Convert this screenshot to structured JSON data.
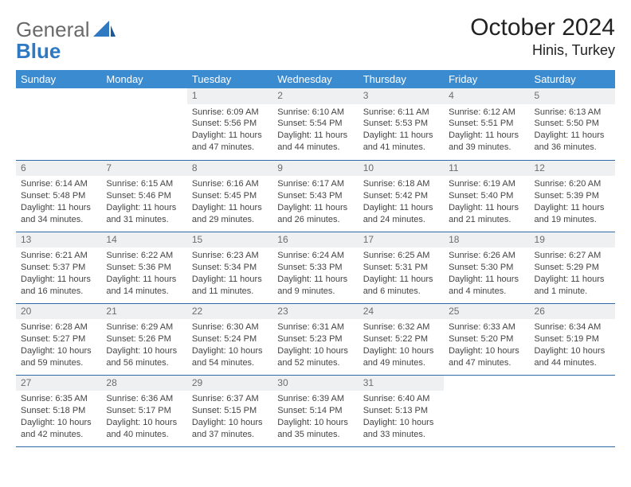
{
  "brand": {
    "general": "General",
    "blue": "Blue"
  },
  "title": "October 2024",
  "location": "Hinis, Turkey",
  "header_bg": "#3b8bd1",
  "daybar_bg": "#eef0f2",
  "rule_color": "#2e6aa7",
  "day_names": [
    "Sunday",
    "Monday",
    "Tuesday",
    "Wednesday",
    "Thursday",
    "Friday",
    "Saturday"
  ],
  "weeks": [
    [
      null,
      null,
      {
        "d": "1",
        "sr": "6:09 AM",
        "ss": "5:56 PM",
        "dl": "11 hours and 47 minutes."
      },
      {
        "d": "2",
        "sr": "6:10 AM",
        "ss": "5:54 PM",
        "dl": "11 hours and 44 minutes."
      },
      {
        "d": "3",
        "sr": "6:11 AM",
        "ss": "5:53 PM",
        "dl": "11 hours and 41 minutes."
      },
      {
        "d": "4",
        "sr": "6:12 AM",
        "ss": "5:51 PM",
        "dl": "11 hours and 39 minutes."
      },
      {
        "d": "5",
        "sr": "6:13 AM",
        "ss": "5:50 PM",
        "dl": "11 hours and 36 minutes."
      }
    ],
    [
      {
        "d": "6",
        "sr": "6:14 AM",
        "ss": "5:48 PM",
        "dl": "11 hours and 34 minutes."
      },
      {
        "d": "7",
        "sr": "6:15 AM",
        "ss": "5:46 PM",
        "dl": "11 hours and 31 minutes."
      },
      {
        "d": "8",
        "sr": "6:16 AM",
        "ss": "5:45 PM",
        "dl": "11 hours and 29 minutes."
      },
      {
        "d": "9",
        "sr": "6:17 AM",
        "ss": "5:43 PM",
        "dl": "11 hours and 26 minutes."
      },
      {
        "d": "10",
        "sr": "6:18 AM",
        "ss": "5:42 PM",
        "dl": "11 hours and 24 minutes."
      },
      {
        "d": "11",
        "sr": "6:19 AM",
        "ss": "5:40 PM",
        "dl": "11 hours and 21 minutes."
      },
      {
        "d": "12",
        "sr": "6:20 AM",
        "ss": "5:39 PM",
        "dl": "11 hours and 19 minutes."
      }
    ],
    [
      {
        "d": "13",
        "sr": "6:21 AM",
        "ss": "5:37 PM",
        "dl": "11 hours and 16 minutes."
      },
      {
        "d": "14",
        "sr": "6:22 AM",
        "ss": "5:36 PM",
        "dl": "11 hours and 14 minutes."
      },
      {
        "d": "15",
        "sr": "6:23 AM",
        "ss": "5:34 PM",
        "dl": "11 hours and 11 minutes."
      },
      {
        "d": "16",
        "sr": "6:24 AM",
        "ss": "5:33 PM",
        "dl": "11 hours and 9 minutes."
      },
      {
        "d": "17",
        "sr": "6:25 AM",
        "ss": "5:31 PM",
        "dl": "11 hours and 6 minutes."
      },
      {
        "d": "18",
        "sr": "6:26 AM",
        "ss": "5:30 PM",
        "dl": "11 hours and 4 minutes."
      },
      {
        "d": "19",
        "sr": "6:27 AM",
        "ss": "5:29 PM",
        "dl": "11 hours and 1 minute."
      }
    ],
    [
      {
        "d": "20",
        "sr": "6:28 AM",
        "ss": "5:27 PM",
        "dl": "10 hours and 59 minutes."
      },
      {
        "d": "21",
        "sr": "6:29 AM",
        "ss": "5:26 PM",
        "dl": "10 hours and 56 minutes."
      },
      {
        "d": "22",
        "sr": "6:30 AM",
        "ss": "5:24 PM",
        "dl": "10 hours and 54 minutes."
      },
      {
        "d": "23",
        "sr": "6:31 AM",
        "ss": "5:23 PM",
        "dl": "10 hours and 52 minutes."
      },
      {
        "d": "24",
        "sr": "6:32 AM",
        "ss": "5:22 PM",
        "dl": "10 hours and 49 minutes."
      },
      {
        "d": "25",
        "sr": "6:33 AM",
        "ss": "5:20 PM",
        "dl": "10 hours and 47 minutes."
      },
      {
        "d": "26",
        "sr": "6:34 AM",
        "ss": "5:19 PM",
        "dl": "10 hours and 44 minutes."
      }
    ],
    [
      {
        "d": "27",
        "sr": "6:35 AM",
        "ss": "5:18 PM",
        "dl": "10 hours and 42 minutes."
      },
      {
        "d": "28",
        "sr": "6:36 AM",
        "ss": "5:17 PM",
        "dl": "10 hours and 40 minutes."
      },
      {
        "d": "29",
        "sr": "6:37 AM",
        "ss": "5:15 PM",
        "dl": "10 hours and 37 minutes."
      },
      {
        "d": "30",
        "sr": "6:39 AM",
        "ss": "5:14 PM",
        "dl": "10 hours and 35 minutes."
      },
      {
        "d": "31",
        "sr": "6:40 AM",
        "ss": "5:13 PM",
        "dl": "10 hours and 33 minutes."
      },
      null,
      null
    ]
  ],
  "labels": {
    "sunrise": "Sunrise:",
    "sunset": "Sunset:",
    "daylight": "Daylight:"
  }
}
